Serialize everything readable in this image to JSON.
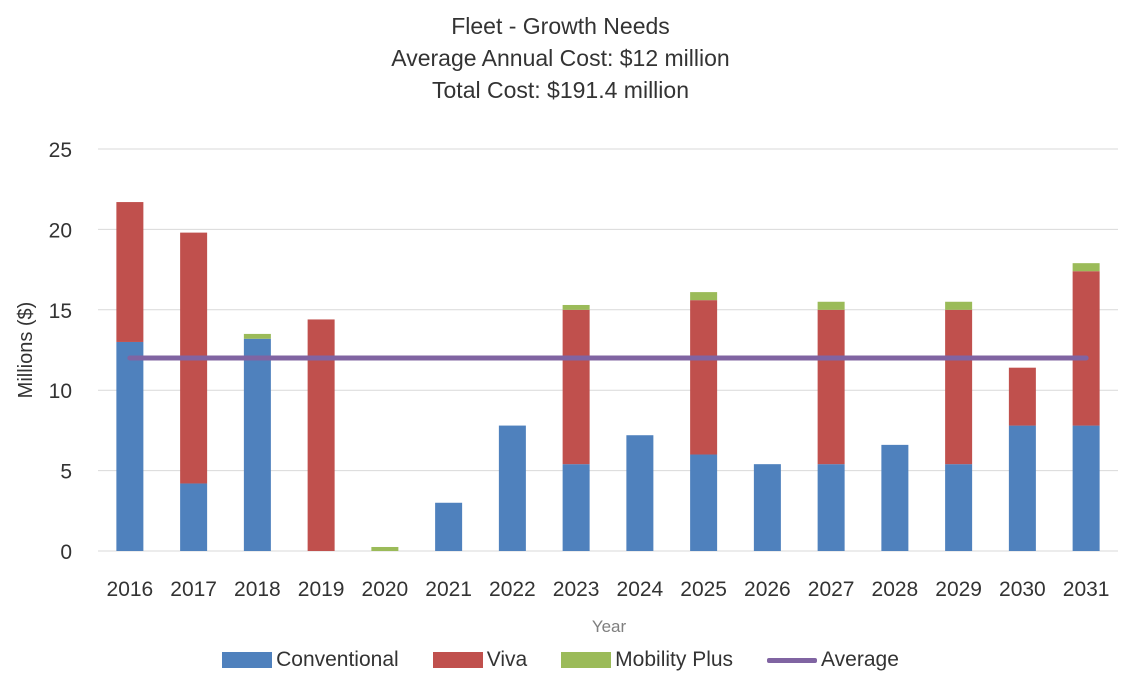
{
  "title": {
    "line1": "Fleet - Growth Needs",
    "line2": "Average Annual Cost: $12 million",
    "line3": "Total Cost: $191.4 million"
  },
  "chart_data": {
    "type": "bar",
    "stacked": true,
    "title": "Fleet - Growth Needs",
    "subtitle": "Average Annual Cost: $12 million / Total Cost: $191.4 million",
    "xlabel": "Year",
    "ylabel": "Millions ($)",
    "ylim": [
      0,
      25
    ],
    "yticks": [
      0,
      5,
      10,
      15,
      20,
      25
    ],
    "grid": true,
    "legend_position": "bottom",
    "categories": [
      "2016",
      "2017",
      "2018",
      "2019",
      "2020",
      "2021",
      "2022",
      "2023",
      "2024",
      "2025",
      "2026",
      "2027",
      "2028",
      "2029",
      "2030",
      "2031"
    ],
    "series": [
      {
        "name": "Conventional",
        "color": "#4f81bd",
        "values": [
          13.0,
          4.2,
          13.2,
          0,
          0,
          3.0,
          7.8,
          5.4,
          7.2,
          6.0,
          5.4,
          5.4,
          6.6,
          5.4,
          7.8,
          7.8
        ]
      },
      {
        "name": "Viva",
        "color": "#c0504d",
        "values": [
          8.7,
          15.6,
          0,
          14.4,
          0,
          0,
          0,
          9.6,
          0,
          9.6,
          0,
          9.6,
          0,
          9.6,
          3.6,
          9.6
        ]
      },
      {
        "name": "Mobility Plus",
        "color": "#9bbb59",
        "values": [
          0,
          0,
          0.3,
          0,
          0.25,
          0,
          0,
          0.3,
          0,
          0.5,
          0,
          0.5,
          0,
          0.5,
          0,
          0.5
        ]
      }
    ],
    "average": {
      "name": "Average",
      "color": "#8064a2",
      "value": 12
    }
  }
}
